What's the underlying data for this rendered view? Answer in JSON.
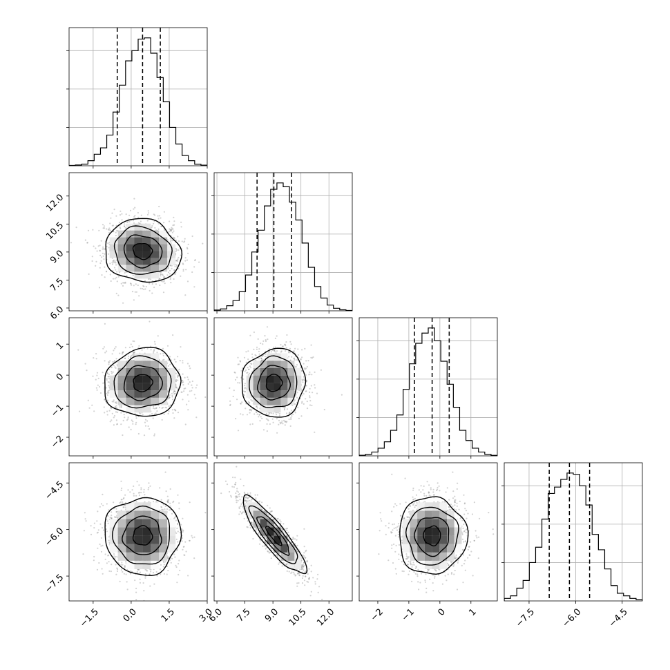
{
  "chart_data": {
    "type": "corner",
    "parameters": [
      {
        "range": [
          -2.45,
          3.0
        ],
        "ticks": [
          -1.5,
          0.0,
          1.5,
          3.0
        ],
        "tick_labels": [
          "−1.5",
          "0.0",
          "1.5",
          "3.0"
        ],
        "quantiles": [
          -0.55,
          0.45,
          1.15
        ],
        "hist": [
          0.003,
          0.006,
          0.013,
          0.04,
          0.09,
          0.14,
          0.24,
          0.42,
          0.63,
          0.82,
          0.9,
          0.99,
          1.0,
          0.88,
          0.69,
          0.5,
          0.3,
          0.17,
          0.08,
          0.04,
          0.012,
          0.005
        ]
      },
      {
        "range": [
          5.85,
          13.25
        ],
        "ticks": [
          6.0,
          7.5,
          9.0,
          10.5,
          12.0
        ],
        "tick_labels": [
          "6.0",
          "7.5",
          "9.0",
          "10.5",
          "12.0"
        ],
        "quantiles": [
          8.15,
          9.05,
          10.0
        ],
        "hist": [
          0.006,
          0.015,
          0.04,
          0.08,
          0.15,
          0.28,
          0.46,
          0.63,
          0.82,
          0.95,
          1.0,
          0.97,
          0.85,
          0.71,
          0.53,
          0.34,
          0.19,
          0.1,
          0.045,
          0.02,
          0.008,
          0.003
        ]
      },
      {
        "range": [
          -2.6,
          1.85
        ],
        "ticks": [
          -2,
          -1,
          0,
          1
        ],
        "tick_labels": [
          "−2",
          "−1",
          "0",
          "1"
        ],
        "quantiles": [
          -0.82,
          -0.25,
          0.3
        ],
        "hist": [
          0.005,
          0.012,
          0.03,
          0.06,
          0.11,
          0.2,
          0.32,
          0.52,
          0.72,
          0.88,
          0.96,
          1.0,
          0.9,
          0.74,
          0.56,
          0.38,
          0.2,
          0.12,
          0.06,
          0.03,
          0.012,
          0.004
        ]
      },
      {
        "range": [
          -8.3,
          -3.85
        ],
        "ticks": [
          -7.5,
          -6.0,
          -4.5
        ],
        "tick_labels": [
          "−7.5",
          "−6.0",
          "−4.5"
        ],
        "quantiles": [
          -6.85,
          -6.2,
          -5.55
        ],
        "hist": [
          0.02,
          0.04,
          0.1,
          0.16,
          0.3,
          0.42,
          0.64,
          0.84,
          0.89,
          0.95,
          1.0,
          0.99,
          0.9,
          0.75,
          0.52,
          0.4,
          0.25,
          0.12,
          0.06,
          0.04,
          0.02,
          0.01
        ]
      }
    ],
    "pairs": [
      {
        "row": 1,
        "col": 0,
        "mean": [
          0.45,
          9.05
        ],
        "sd": [
          0.75,
          0.85
        ],
        "rho": -0.1
      },
      {
        "row": 2,
        "col": 0,
        "mean": [
          0.45,
          -0.25
        ],
        "sd": [
          0.75,
          0.55
        ],
        "rho": 0.05
      },
      {
        "row": 2,
        "col": 1,
        "mean": [
          9.05,
          -0.25
        ],
        "sd": [
          0.85,
          0.55
        ],
        "rho": 0.05
      },
      {
        "row": 3,
        "col": 0,
        "mean": [
          0.45,
          -6.2
        ],
        "sd": [
          0.75,
          0.62
        ],
        "rho": 0.0
      },
      {
        "row": 3,
        "col": 1,
        "mean": [
          9.05,
          -6.2
        ],
        "sd": [
          0.85,
          0.62
        ],
        "rho": -0.88
      },
      {
        "row": 3,
        "col": 2,
        "mean": [
          -0.25,
          -6.2
        ],
        "sd": [
          0.55,
          0.62
        ],
        "rho": 0.0
      }
    ],
    "grid": true,
    "contour_levels_sigma": [
      0.5,
      1.0,
      1.5,
      2.0
    ],
    "colors": {
      "line": "#000000",
      "grid": "#b0b0b0",
      "points": "#7f7f7f"
    }
  }
}
